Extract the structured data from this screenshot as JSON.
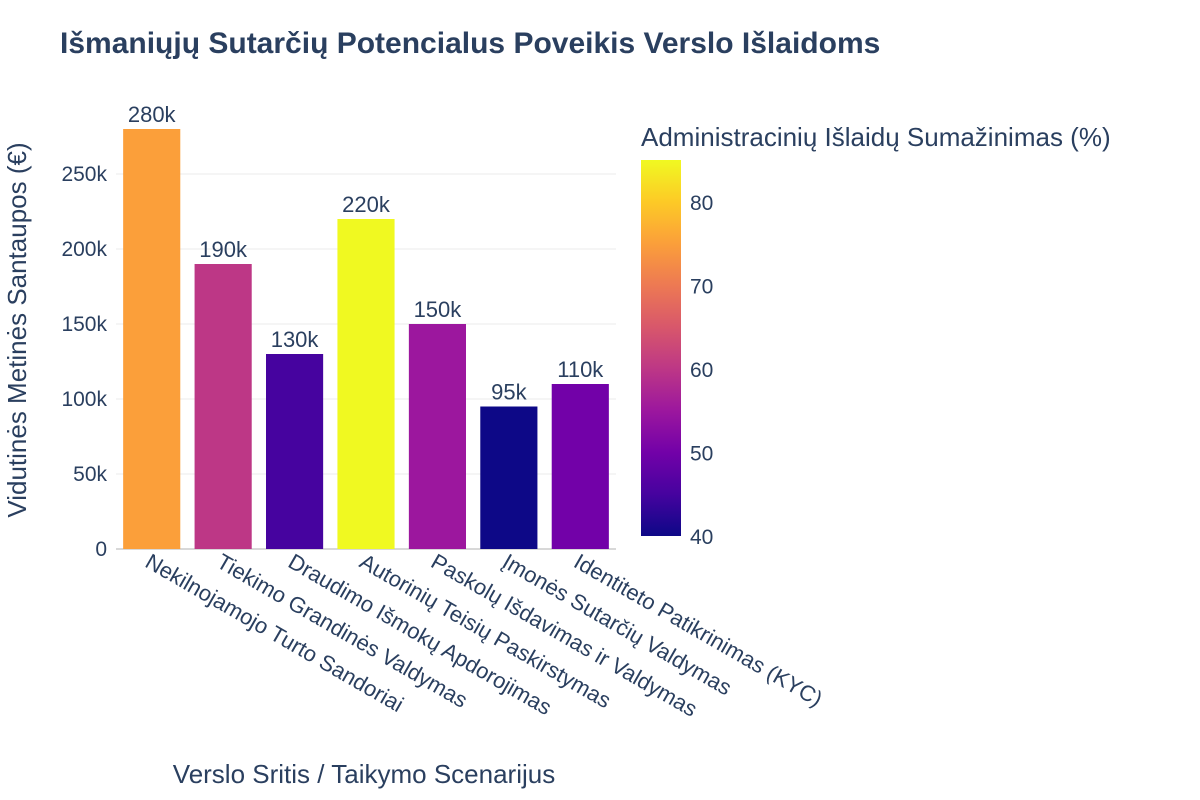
{
  "chart_data": {
    "type": "bar",
    "title": "Išmaniųjų Sutarčių Potencialus Poveikis Verslo Išlaidoms",
    "xlabel": "Verslo Sritis / Taikymo Scenarijus",
    "ylabel": "Vidutinės Metinės Santaupos (€)",
    "categories": [
      "Nekilnojamojo Turto Sandoriai",
      "Tiekimo Grandinės Valdymas",
      "Draudimo Išmokų Apdorojimas",
      "Autorinių Teisių Paskirstymas",
      "Paskolų Išdavimas ir Valdymas",
      "Įmonės Sutarčių Valdymas",
      "Identiteto Patikrinimas (KYC)"
    ],
    "values": [
      280000,
      190000,
      130000,
      220000,
      150000,
      95000,
      110000
    ],
    "data_labels": [
      "280k",
      "190k",
      "130k",
      "220k",
      "150k",
      "95k",
      "110k"
    ],
    "color_values": [
      75,
      60,
      45,
      85,
      55,
      40,
      50
    ],
    "ylim": [
      0,
      280000
    ],
    "y_ticks": [
      0,
      50000,
      100000,
      150000,
      200000,
      250000
    ],
    "y_tick_labels": [
      "0",
      "50k",
      "100k",
      "150k",
      "200k",
      "250k"
    ],
    "grid": true,
    "colorbar": {
      "title": "Administracinių Išlaidų Sumažinimas (%)",
      "range": [
        40,
        85
      ],
      "ticks": [
        40,
        50,
        60,
        70,
        80
      ],
      "tick_labels": [
        "40",
        "50",
        "60",
        "70",
        "80"
      ],
      "colorscale": "Plasma",
      "placement": "right"
    }
  },
  "colors": {
    "text": "#2a3f5f",
    "grid": "#ebebeb",
    "plasma": [
      "#0d0887",
      "#46039f",
      "#7201a8",
      "#9c179e",
      "#bd3786",
      "#d8576b",
      "#ed7953",
      "#fb9f3a",
      "#fdca26",
      "#f0f921"
    ]
  }
}
